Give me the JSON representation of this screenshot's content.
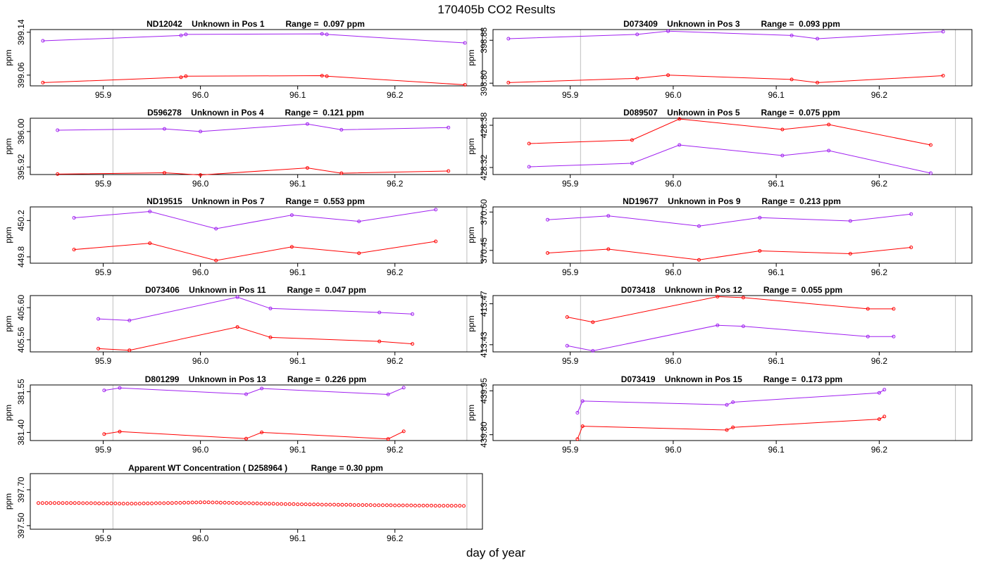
{
  "figure": {
    "title": "170405b  CO2 Results",
    "xlabel": "day of year",
    "colors": {
      "series_a": "#a020f0",
      "series_b": "#ff0000",
      "axis": "#000000",
      "vline": "#bebebe"
    }
  },
  "chart_data": [
    {
      "type": "line",
      "title": "ND12042    Unknown in Pos 1         Range =  0.097 ppm",
      "ylabel": "ppm",
      "xlim": [
        95.825,
        96.29
      ],
      "ylim": [
        399.04,
        399.145
      ],
      "xticks": [
        "95.9",
        "96.0",
        "96.1",
        "96.2"
      ],
      "yticks": [
        "399.06",
        "399.14"
      ],
      "vlines": [
        95.91,
        96.274
      ],
      "series": [
        {
          "name": "upper",
          "color": "#a020f0",
          "x": [
            95.838,
            95.98,
            95.985,
            96.125,
            96.13,
            96.272
          ],
          "y": [
            399.124,
            399.134,
            399.136,
            399.137,
            399.136,
            399.12
          ]
        },
        {
          "name": "lower",
          "color": "#ff0000",
          "x": [
            95.838,
            95.98,
            95.985,
            96.125,
            96.13,
            96.272
          ],
          "y": [
            399.046,
            399.056,
            399.058,
            399.059,
            399.058,
            399.042
          ]
        }
      ]
    },
    {
      "type": "line",
      "title": "D073409    Unknown in Pos 3         Range =  0.093 ppm",
      "ylabel": "ppm",
      "xlim": [
        95.825,
        96.29
      ],
      "ylim": [
        398.795,
        398.9
      ],
      "xticks": [
        "95.9",
        "96.0",
        "96.1",
        "96.2"
      ],
      "yticks": [
        "398.80",
        "398.88"
      ],
      "vlines": [
        95.91,
        96.274
      ],
      "series": [
        {
          "name": "upper",
          "color": "#a020f0",
          "x": [
            95.84,
            95.965,
            95.995,
            96.115,
            96.14,
            96.262
          ],
          "y": [
            398.883,
            398.891,
            398.897,
            398.889,
            398.883,
            398.896
          ]
        },
        {
          "name": "lower",
          "color": "#ff0000",
          "x": [
            95.84,
            95.965,
            95.995,
            96.115,
            96.14,
            96.262
          ],
          "y": [
            398.801,
            398.809,
            398.815,
            398.807,
            398.801,
            398.814
          ]
        }
      ]
    },
    {
      "type": "line",
      "title": "D596278    Unknown in Pos 4         Range =  0.121 ppm",
      "ylabel": "ppm",
      "xlim": [
        95.825,
        96.29
      ],
      "ylim": [
        395.903,
        396.03
      ],
      "xticks": [
        "95.9",
        "96.0",
        "96.1",
        "96.2"
      ],
      "yticks": [
        "395.92",
        "396.00"
      ],
      "vlines": [
        95.91,
        96.274
      ],
      "series": [
        {
          "name": "upper",
          "color": "#a020f0",
          "x": [
            95.853,
            95.963,
            96.0,
            96.11,
            96.145,
            96.255
          ],
          "y": [
            396.003,
            396.006,
            396.0,
            396.017,
            396.004,
            396.009
          ]
        },
        {
          "name": "lower",
          "color": "#ff0000",
          "x": [
            95.853,
            95.963,
            96.0,
            96.11,
            96.145,
            96.255
          ],
          "y": [
            395.904,
            395.907,
            395.902,
            395.918,
            395.906,
            395.911
          ]
        }
      ]
    },
    {
      "type": "line",
      "title": "D089507    Unknown in Pos 5         Range =  0.075 ppm",
      "ylabel": "ppm",
      "xlim": [
        95.825,
        96.29
      ],
      "ylim": [
        428.31,
        428.39
      ],
      "xticks": [
        "95.9",
        "96.0",
        "96.1",
        "96.2"
      ],
      "yticks": [
        "428.32",
        "428.38"
      ],
      "vlines": [
        95.91,
        96.274
      ],
      "series": [
        {
          "name": "upper",
          "color": "#ff0000",
          "x": [
            95.86,
            95.96,
            96.006,
            96.106,
            96.151,
            96.25
          ],
          "y": [
            428.354,
            428.359,
            428.389,
            428.374,
            428.381,
            428.352
          ]
        },
        {
          "name": "lower",
          "color": "#a020f0",
          "x": [
            95.86,
            95.96,
            96.006,
            96.106,
            96.151,
            96.25
          ],
          "y": [
            428.321,
            428.326,
            428.352,
            428.337,
            428.344,
            428.312
          ]
        }
      ]
    },
    {
      "type": "line",
      "title": "ND19515    Unknown in Pos 7         Range =  0.553 ppm",
      "ylabel": "ppm",
      "xlim": [
        95.825,
        96.29
      ],
      "ylim": [
        449.73,
        450.35
      ],
      "xticks": [
        "95.9",
        "96.0",
        "96.1",
        "96.2"
      ],
      "yticks": [
        "449.8",
        "450.2"
      ],
      "vlines": [
        95.91,
        96.274
      ],
      "series": [
        {
          "name": "upper",
          "color": "#a020f0",
          "x": [
            95.87,
            95.948,
            96.016,
            96.094,
            96.163,
            96.242
          ],
          "y": [
            450.23,
            450.3,
            450.11,
            450.26,
            450.19,
            450.32
          ]
        },
        {
          "name": "lower",
          "color": "#ff0000",
          "x": [
            95.87,
            95.948,
            96.016,
            96.094,
            96.163,
            96.242
          ],
          "y": [
            449.88,
            449.95,
            449.76,
            449.91,
            449.84,
            449.97
          ]
        }
      ]
    },
    {
      "type": "line",
      "title": "ND19677    Unknown in Pos 9         Range =  0.213 ppm",
      "ylabel": "ppm",
      "xlim": [
        95.825,
        96.29
      ],
      "ylim": [
        370.4,
        370.62
      ],
      "xticks": [
        "95.9",
        "96.0",
        "96.1",
        "96.2"
      ],
      "yticks": [
        "370.45",
        "370.60"
      ],
      "vlines": [
        95.91,
        96.274
      ],
      "series": [
        {
          "name": "upper",
          "color": "#a020f0",
          "x": [
            95.878,
            95.937,
            96.025,
            96.084,
            96.172,
            96.231
          ],
          "y": [
            370.57,
            370.585,
            370.545,
            370.578,
            370.565,
            370.592
          ]
        },
        {
          "name": "lower",
          "color": "#ff0000",
          "x": [
            95.878,
            95.937,
            96.025,
            96.084,
            96.172,
            96.231
          ],
          "y": [
            370.44,
            370.455,
            370.413,
            370.448,
            370.437,
            370.462
          ]
        }
      ]
    },
    {
      "type": "line",
      "title": "D073406    Unknown in Pos 11         Range =  0.047 ppm",
      "ylabel": "ppm",
      "xlim": [
        95.825,
        96.29
      ],
      "ylim": [
        405.545,
        405.615
      ],
      "xticks": [
        "95.9",
        "96.0",
        "96.1",
        "96.2"
      ],
      "yticks": [
        "405.56",
        "405.60"
      ],
      "vlines": [
        95.91,
        96.274
      ],
      "series": [
        {
          "name": "upper",
          "color": "#a020f0",
          "x": [
            95.895,
            95.927,
            96.038,
            96.072,
            96.184,
            96.218
          ],
          "y": [
            405.586,
            405.584,
            405.613,
            405.599,
            405.594,
            405.592
          ]
        },
        {
          "name": "lower",
          "color": "#ff0000",
          "x": [
            95.895,
            95.927,
            96.038,
            96.072,
            96.184,
            96.218
          ],
          "y": [
            405.549,
            405.547,
            405.576,
            405.563,
            405.558,
            405.555
          ]
        }
      ]
    },
    {
      "type": "line",
      "title": "D073418    Unknown in Pos 12         Range =  0.055 ppm",
      "ylabel": "ppm",
      "xlim": [
        95.825,
        96.29
      ],
      "ylim": [
        413.423,
        413.478
      ],
      "xticks": [
        "95.9",
        "96.0",
        "96.1",
        "96.2"
      ],
      "yticks": [
        "413.43",
        "413.47"
      ],
      "vlines": [
        95.91,
        96.274
      ],
      "series": [
        {
          "name": "upper",
          "color": "#ff0000",
          "x": [
            95.897,
            95.922,
            96.043,
            96.068,
            96.189,
            96.214
          ],
          "y": [
            413.457,
            413.452,
            413.477,
            413.476,
            413.465,
            413.465
          ]
        },
        {
          "name": "lower",
          "color": "#a020f0",
          "x": [
            95.897,
            95.922,
            96.043,
            96.068,
            96.189,
            96.214
          ],
          "y": [
            413.429,
            413.424,
            413.449,
            413.448,
            413.438,
            413.438
          ]
        }
      ]
    },
    {
      "type": "line",
      "title": "D801299    Unknown in Pos 13         Range =  0.226 ppm",
      "ylabel": "ppm",
      "xlim": [
        95.825,
        96.29
      ],
      "ylim": [
        381.37,
        381.575
      ],
      "xticks": [
        "95.9",
        "96.0",
        "96.1",
        "96.2"
      ],
      "yticks": [
        "381.40",
        "381.55"
      ],
      "vlines": [
        95.91,
        96.274
      ],
      "series": [
        {
          "name": "upper",
          "color": "#a020f0",
          "x": [
            95.901,
            95.917,
            96.047,
            96.063,
            96.193,
            96.209
          ],
          "y": [
            381.555,
            381.564,
            381.541,
            381.562,
            381.54,
            381.565
          ]
        },
        {
          "name": "lower",
          "color": "#ff0000",
          "x": [
            95.901,
            95.917,
            96.047,
            96.063,
            96.193,
            96.209
          ],
          "y": [
            381.394,
            381.403,
            381.377,
            381.4,
            381.376,
            381.404
          ]
        }
      ]
    },
    {
      "type": "line",
      "title": "D073419    Unknown in Pos 15         Range =  0.173 ppm",
      "ylabel": "ppm",
      "xlim": [
        95.825,
        96.29
      ],
      "ylim": [
        439.78,
        439.97
      ],
      "xticks": [
        "95.9",
        "96.0",
        "96.1",
        "96.2"
      ],
      "yticks": [
        "439.80",
        "439.95"
      ],
      "vlines": [
        95.91,
        96.274
      ],
      "series": [
        {
          "name": "upper",
          "color": "#a020f0",
          "x": [
            95.907,
            95.912,
            96.052,
            96.058,
            96.2,
            96.205
          ],
          "y": [
            439.875,
            439.915,
            439.902,
            439.911,
            439.943,
            439.954
          ]
        },
        {
          "name": "lower",
          "color": "#ff0000",
          "x": [
            95.907,
            95.912,
            96.052,
            96.058,
            96.2,
            96.205
          ],
          "y": [
            439.785,
            439.829,
            439.816,
            439.825,
            439.853,
            439.862
          ]
        }
      ]
    },
    {
      "type": "scatter",
      "title": "Apparent WT Concentration ( D258964 )          Range = 0.30 ppm",
      "ylabel": "ppm",
      "xlim": [
        95.825,
        96.29
      ],
      "ylim": [
        397.48,
        397.79
      ],
      "xticks": [
        "95.9",
        "96.0",
        "96.1",
        "96.2"
      ],
      "yticks": [
        "397.50",
        "397.70"
      ],
      "vlines": [
        95.91,
        96.274
      ],
      "series": [
        {
          "name": "WT",
          "color": "#ff0000",
          "x": [
            95.8333,
            95.8375,
            95.8417,
            95.8458,
            95.85,
            95.8542,
            95.8583,
            95.8625,
            95.8667,
            95.8708,
            95.875,
            95.8792,
            95.8833,
            95.8875,
            95.8917,
            95.8958,
            95.9,
            95.9042,
            95.9083,
            95.9125,
            95.9167,
            95.9208,
            95.925,
            95.9292,
            95.9333,
            95.9375,
            95.9417,
            95.9458,
            95.95,
            95.9542,
            95.9583,
            95.9625,
            95.9667,
            95.9708,
            95.975,
            95.9792,
            95.9833,
            95.9875,
            95.9917,
            95.9958,
            96.0,
            96.0042,
            96.0083,
            96.0125,
            96.0167,
            96.0208,
            96.025,
            96.0292,
            96.0333,
            96.0375,
            96.0417,
            96.0458,
            96.05,
            96.0542,
            96.0583,
            96.0625,
            96.0667,
            96.0708,
            96.075,
            96.0792,
            96.0833,
            96.0875,
            96.0917,
            96.0958,
            96.1,
            96.1042,
            96.1083,
            96.1125,
            96.1167,
            96.1208,
            96.125,
            96.1292,
            96.1333,
            96.1375,
            96.1417,
            96.1458,
            96.15,
            96.1542,
            96.1583,
            96.1625,
            96.1667,
            96.1708,
            96.175,
            96.1792,
            96.1833,
            96.1875,
            96.1917,
            96.1958,
            96.2,
            96.2042,
            96.2083,
            96.2125,
            96.2167,
            96.2208,
            96.225,
            96.2292,
            96.2333,
            96.2375,
            96.2417,
            96.2458,
            96.25,
            96.2542,
            96.2583,
            96.2625,
            96.2667,
            96.2708
          ],
          "y": [
            397.626,
            397.626,
            397.626,
            397.626,
            397.626,
            397.626,
            397.626,
            397.626,
            397.626,
            397.626,
            397.626,
            397.625,
            397.625,
            397.625,
            397.625,
            397.624,
            397.624,
            397.624,
            397.624,
            397.624,
            397.623,
            397.623,
            397.623,
            397.623,
            397.623,
            397.623,
            397.624,
            397.624,
            397.624,
            397.625,
            397.625,
            397.625,
            397.626,
            397.626,
            397.627,
            397.627,
            397.628,
            397.628,
            397.629,
            397.629,
            397.63,
            397.63,
            397.63,
            397.629,
            397.629,
            397.628,
            397.628,
            397.627,
            397.627,
            397.626,
            397.626,
            397.625,
            397.625,
            397.624,
            397.624,
            397.623,
            397.623,
            397.622,
            397.622,
            397.621,
            397.621,
            397.62,
            397.62,
            397.62,
            397.619,
            397.619,
            397.619,
            397.618,
            397.618,
            397.618,
            397.617,
            397.617,
            397.617,
            397.617,
            397.616,
            397.616,
            397.616,
            397.616,
            397.615,
            397.615,
            397.615,
            397.615,
            397.615,
            397.614,
            397.614,
            397.614,
            397.614,
            397.614,
            397.613,
            397.613,
            397.613,
            397.613,
            397.613,
            397.612,
            397.612,
            397.612,
            397.612,
            397.612,
            397.611,
            397.611,
            397.611,
            397.611,
            397.611,
            397.611,
            397.611,
            397.61
          ]
        }
      ]
    }
  ]
}
